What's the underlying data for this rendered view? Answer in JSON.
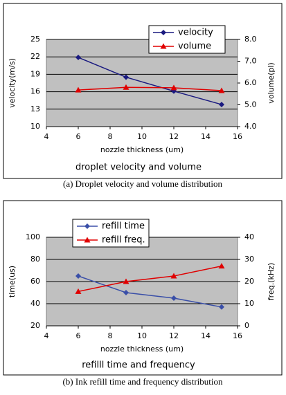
{
  "chart_data": [
    {
      "type": "line",
      "title": "droplet velocity and volume",
      "caption": "(a) Droplet velocity and volume distribution",
      "xlabel": "nozzle thickness (um)",
      "ylabel": "velocity(m/s)",
      "y2label": "volume(pl)",
      "x": [
        6,
        9,
        12,
        15
      ],
      "series": [
        {
          "name": "velocity",
          "color": "#1a1a80",
          "marker": "diamond",
          "values": [
            21.9,
            18.5,
            16.1,
            13.8
          ]
        },
        {
          "name": "volume",
          "color": "#e00000",
          "marker": "triangle",
          "axis": "y2",
          "values": [
            5.68,
            5.8,
            5.78,
            5.65
          ]
        }
      ],
      "xlim": [
        4,
        16
      ],
      "xticks": [
        4,
        6,
        8,
        10,
        12,
        14,
        16
      ],
      "ylim": [
        10,
        25
      ],
      "yticks": [
        10,
        13,
        16,
        19,
        22,
        25
      ],
      "y2lim": [
        4,
        8
      ],
      "y2ticks": [
        {
          "value": 4,
          "label": "4.0"
        },
        {
          "value": 5,
          "label": "5.0"
        },
        {
          "value": 6,
          "label": "6.0"
        },
        {
          "value": 7,
          "label": "7.0"
        },
        {
          "value": 8,
          "label": "8.0"
        }
      ],
      "grid": true,
      "legend": "top"
    },
    {
      "type": "line",
      "title": "refilll time and frequency",
      "caption": "(b) Ink refill time and frequency distribution",
      "xlabel": "nozzle thickness (um)",
      "ylabel": "time(us)",
      "y2label": "freq.(kHz)",
      "x": [
        6,
        9,
        12,
        15
      ],
      "series": [
        {
          "name": "refill time",
          "color": "#3a4fa8",
          "marker": "diamond",
          "values": [
            65,
            50,
            45,
            37
          ]
        },
        {
          "name": "refill freq.",
          "color": "#e00000",
          "marker": "triangle",
          "axis": "y2",
          "values": [
            15.5,
            20,
            22.5,
            27
          ]
        }
      ],
      "xlim": [
        4,
        16
      ],
      "xticks": [
        4,
        6,
        8,
        10,
        12,
        14,
        16
      ],
      "ylim": [
        20,
        100
      ],
      "yticks": [
        20,
        40,
        60,
        80,
        100
      ],
      "y2lim": [
        0,
        40
      ],
      "y2ticks": [
        0,
        10,
        20,
        30,
        40
      ],
      "grid": true,
      "legend": "top"
    }
  ]
}
